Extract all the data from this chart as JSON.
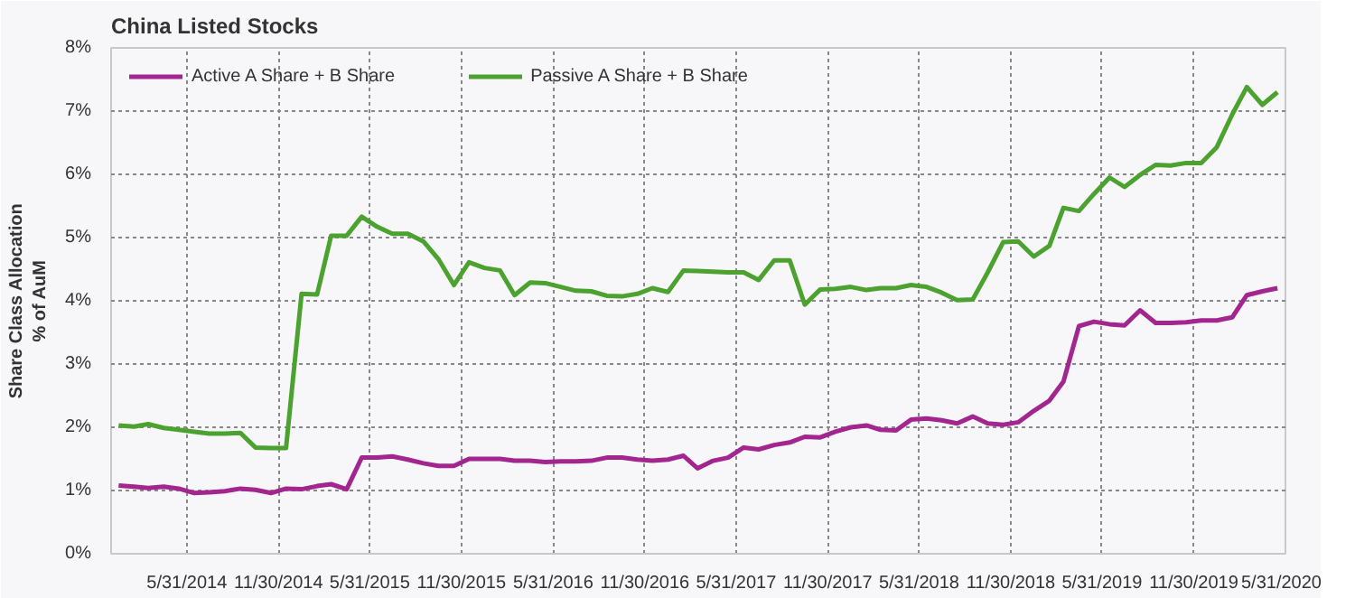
{
  "chart_data": {
    "type": "line",
    "title": "China Listed Stocks",
    "ylabel": "Share Class Allocation\n% of AuM",
    "x": [
      "2014-01-15",
      "2014-02-15",
      "2014-03-15",
      "2014-04-15",
      "2014-05-15",
      "2014-06-15",
      "2014-07-15",
      "2014-08-15",
      "2014-09-15",
      "2014-10-15",
      "2014-11-15",
      "2014-12-15",
      "2015-01-15",
      "2015-02-15",
      "2015-03-15",
      "2015-04-15",
      "2015-05-15",
      "2015-06-15",
      "2015-07-15",
      "2015-08-15",
      "2015-09-15",
      "2015-10-15",
      "2015-11-15",
      "2015-12-15",
      "2016-01-15",
      "2016-02-15",
      "2016-03-15",
      "2016-04-15",
      "2016-05-15",
      "2016-06-15",
      "2016-07-15",
      "2016-08-15",
      "2016-09-15",
      "2016-10-15",
      "2016-11-15",
      "2016-12-15",
      "2017-01-15",
      "2017-02-15",
      "2017-03-15",
      "2017-04-15",
      "2017-05-15",
      "2017-06-15",
      "2017-07-15",
      "2017-08-15",
      "2017-09-15",
      "2017-10-15",
      "2017-11-15",
      "2017-12-15",
      "2018-01-15",
      "2018-02-15",
      "2018-03-15",
      "2018-04-15",
      "2018-05-15",
      "2018-06-15",
      "2018-07-15",
      "2018-08-15",
      "2018-09-15",
      "2018-10-15",
      "2018-11-15",
      "2018-12-15",
      "2019-01-15",
      "2019-02-15",
      "2019-03-15",
      "2019-04-15",
      "2019-05-15",
      "2019-06-15",
      "2019-07-15",
      "2019-08-15",
      "2019-09-15",
      "2019-10-15",
      "2019-11-15",
      "2019-12-15",
      "2020-01-15",
      "2020-02-15",
      "2020-03-15",
      "2020-04-15",
      "2020-05-15"
    ],
    "series": [
      {
        "name": "Active A Share + B Share",
        "color": "#a3258f",
        "values": [
          1.08,
          1.06,
          1.04,
          1.06,
          1.03,
          0.96,
          0.97,
          0.99,
          1.03,
          1.01,
          0.96,
          1.03,
          1.02,
          1.07,
          1.1,
          1.02,
          1.52,
          1.52,
          1.54,
          1.49,
          1.43,
          1.39,
          1.39,
          1.5,
          1.5,
          1.5,
          1.47,
          1.47,
          1.45,
          1.46,
          1.46,
          1.47,
          1.52,
          1.52,
          1.49,
          1.47,
          1.49,
          1.55,
          1.35,
          1.47,
          1.52,
          1.68,
          1.65,
          1.72,
          1.76,
          1.85,
          1.84,
          1.93,
          2.0,
          2.03,
          1.96,
          1.95,
          2.12,
          2.14,
          2.11,
          2.06,
          2.17,
          2.06,
          2.04,
          2.08,
          2.26,
          2.42,
          2.72,
          3.6,
          3.67,
          3.63,
          3.61,
          3.85,
          3.65,
          3.65,
          3.66,
          3.69,
          3.69,
          3.74,
          4.09,
          4.15,
          4.2
        ]
      },
      {
        "name": "Passive A Share + B Share",
        "color": "#4ca22f",
        "values": [
          2.03,
          2.01,
          2.05,
          1.99,
          1.96,
          1.93,
          1.9,
          1.9,
          1.91,
          1.68,
          1.67,
          1.67,
          4.11,
          4.1,
          5.03,
          5.03,
          5.33,
          5.17,
          5.06,
          5.06,
          4.94,
          4.66,
          4.25,
          4.61,
          4.52,
          4.48,
          4.09,
          4.29,
          4.28,
          4.22,
          4.16,
          4.15,
          4.08,
          4.07,
          4.11,
          4.2,
          4.14,
          4.48,
          4.47,
          4.46,
          4.45,
          4.45,
          4.33,
          4.64,
          4.64,
          3.94,
          4.18,
          4.19,
          4.22,
          4.17,
          4.2,
          4.2,
          4.25,
          4.22,
          4.13,
          4.01,
          4.02,
          4.45,
          4.93,
          4.94,
          4.7,
          4.87,
          5.47,
          5.42,
          5.69,
          5.95,
          5.8,
          5.99,
          6.15,
          6.14,
          6.18,
          6.18,
          6.43,
          6.95,
          7.38,
          7.1,
          7.3
        ]
      }
    ],
    "xlim": [
      "2013-12-31",
      "2020-05-31"
    ],
    "xticks": [
      {
        "value": "2014-05-31",
        "label": "5/31/2014"
      },
      {
        "value": "2014-11-30",
        "label": "11/30/2014"
      },
      {
        "value": "2015-05-31",
        "label": "5/31/2015"
      },
      {
        "value": "2015-11-30",
        "label": "11/30/2015"
      },
      {
        "value": "2016-05-31",
        "label": "5/31/2016"
      },
      {
        "value": "2016-11-30",
        "label": "11/30/2016"
      },
      {
        "value": "2017-05-31",
        "label": "5/31/2017"
      },
      {
        "value": "2017-11-30",
        "label": "11/30/2017"
      },
      {
        "value": "2018-05-31",
        "label": "5/31/2018"
      },
      {
        "value": "2018-11-30",
        "label": "11/30/2018"
      },
      {
        "value": "2019-05-31",
        "label": "5/31/2019"
      },
      {
        "value": "2019-11-30",
        "label": "11/30/2019"
      },
      {
        "value": "2020-05-31",
        "label": "5/31/2020"
      }
    ],
    "ylim": [
      0,
      8
    ],
    "yticks": [
      {
        "value": 0,
        "label": "0%"
      },
      {
        "value": 1,
        "label": "1%"
      },
      {
        "value": 2,
        "label": "2%"
      },
      {
        "value": 3,
        "label": "3%"
      },
      {
        "value": 4,
        "label": "4%"
      },
      {
        "value": 5,
        "label": "5%"
      },
      {
        "value": 6,
        "label": "6%"
      },
      {
        "value": 7,
        "label": "7%"
      },
      {
        "value": 8,
        "label": "8%"
      }
    ],
    "grid": true,
    "legend": "top left",
    "line_style": "solid",
    "marker": "none"
  }
}
